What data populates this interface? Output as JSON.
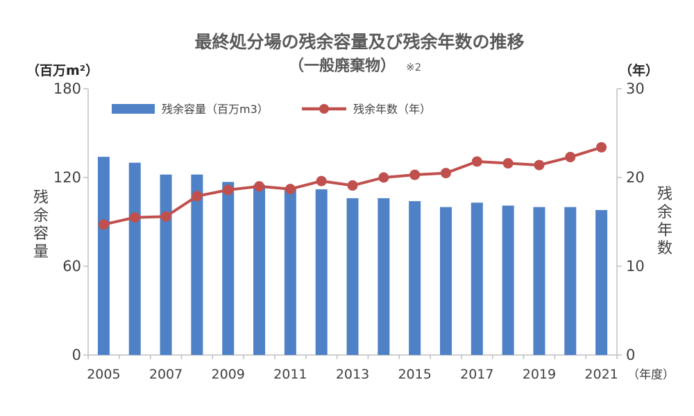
{
  "chart_data": {
    "type": "bar+line",
    "title": "最終処分場の残余容量及び残余年数の推移",
    "subtitle": "（一般廃棄物）",
    "subtitle_note": "※2",
    "left_unit": "（百万m²）",
    "right_unit": "（年）",
    "x_unit": "（年度）",
    "left_axis_title": [
      "残",
      "余",
      "容",
      "量"
    ],
    "right_axis_title": [
      "残",
      "余",
      "年",
      "数"
    ],
    "x_tick_labels": [
      "2005",
      "2007",
      "2009",
      "2011",
      "2013",
      "2015",
      "2017",
      "2019",
      "2021"
    ],
    "left_ticks": [
      "0",
      "60",
      "120",
      "180"
    ],
    "right_ticks": [
      "0",
      "10",
      "20",
      "30"
    ],
    "left_ylim": [
      0,
      180
    ],
    "right_ylim": [
      0,
      30
    ],
    "grid": false,
    "legend_position": "top-left",
    "categories": [
      2005,
      2006,
      2007,
      2008,
      2009,
      2010,
      2011,
      2012,
      2013,
      2014,
      2015,
      2016,
      2017,
      2018,
      2019,
      2020,
      2021
    ],
    "series": [
      {
        "name": "残余容量（百万m3）",
        "type": "bar",
        "axis": "left",
        "color": "#4f81c7",
        "values": [
          134,
          130,
          122,
          122,
          117,
          115,
          113,
          112,
          106,
          106,
          104,
          100,
          103,
          101,
          100,
          100,
          98
        ]
      },
      {
        "name": "残余年数（年）",
        "type": "line",
        "axis": "right",
        "color": "#c0504d",
        "values": [
          14.7,
          15.5,
          15.6,
          17.9,
          18.6,
          19.0,
          18.7,
          19.6,
          19.1,
          20.0,
          20.3,
          20.5,
          21.8,
          21.6,
          21.4,
          22.3,
          23.4
        ]
      }
    ]
  }
}
